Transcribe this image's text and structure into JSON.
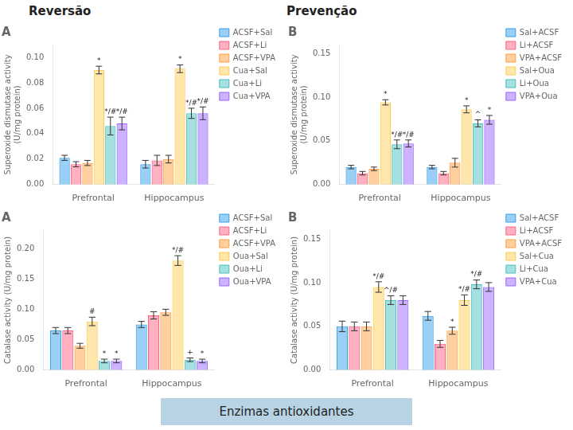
{
  "annotations": [
    "Reversão",
    "Prevenção",
    "Enzimas antioxidantes"
  ],
  "chart_data": [
    {
      "type": "bar",
      "title": "A",
      "ylabel": "Superoxide dismutase activity\n(U/mg protein)",
      "categories": [
        "Prefrontal",
        "Hippocampus"
      ],
      "series": [
        {
          "name": "ACSF+Sal",
          "values": [
            0.021,
            0.016
          ],
          "errors": [
            0.002,
            0.003
          ]
        },
        {
          "name": "ACSF+Li",
          "values": [
            0.016,
            0.019
          ],
          "errors": [
            0.002,
            0.004
          ]
        },
        {
          "name": "ACSF+VPA",
          "values": [
            0.017,
            0.02
          ],
          "errors": [
            0.002,
            0.003
          ]
        },
        {
          "name": "Cua+Sal",
          "values": [
            0.09,
            0.091
          ],
          "errors": [
            0.003,
            0.003
          ],
          "annotations": [
            "*",
            "*"
          ]
        },
        {
          "name": "Cua+Li",
          "values": [
            0.046,
            0.056
          ],
          "errors": [
            0.007,
            0.004
          ],
          "annotations": [
            "*/#",
            "*/#"
          ]
        },
        {
          "name": "Cua+VPA",
          "values": [
            0.048,
            0.056
          ],
          "errors": [
            0.005,
            0.005
          ],
          "annotations": [
            "*/#",
            "*/#"
          ]
        }
      ],
      "ylim": [
        0,
        0.11
      ],
      "yticks": [
        {
          "value": 0,
          "label": "0.00"
        },
        0.02,
        0.04,
        0.06,
        0.08,
        {
          "value": 0.1,
          "label": "0.10"
        }
      ],
      "grid": false,
      "legend": "right"
    },
    {
      "type": "bar",
      "title": "B",
      "ylabel": "Superoxide dismutase activity\n(U/mg protein)",
      "categories": [
        "Prefrontal",
        "Hippocampus"
      ],
      "series": [
        {
          "name": "Sal+ACSF",
          "values": [
            0.02,
            0.02
          ],
          "errors": [
            0.002,
            0.002
          ]
        },
        {
          "name": "Li+ACSF",
          "values": [
            0.013,
            0.013
          ],
          "errors": [
            0.002,
            0.002
          ]
        },
        {
          "name": "VPA+ACSF",
          "values": [
            0.018,
            0.025
          ],
          "errors": [
            0.002,
            0.005
          ]
        },
        {
          "name": "Sal+Oua",
          "values": [
            0.094,
            0.086
          ],
          "errors": [
            0.003,
            0.004
          ],
          "annotations": [
            "*",
            "*"
          ]
        },
        {
          "name": "Li+Oua",
          "values": [
            0.046,
            0.07
          ],
          "errors": [
            0.005,
            0.004
          ],
          "annotations": [
            "*/#",
            "^"
          ]
        },
        {
          "name": "VPA+Oua",
          "values": [
            0.047,
            0.074
          ],
          "errors": [
            0.004,
            0.005
          ],
          "annotations": [
            "*/#",
            "*"
          ]
        }
      ],
      "ylim": [
        0,
        0.16
      ],
      "yticks": [
        {
          "value": 0,
          "label": "0.00"
        },
        0.05,
        {
          "value": 0.1,
          "label": "0.10"
        },
        0.15
      ],
      "grid": false,
      "legend": "right"
    },
    {
      "type": "bar",
      "title": "A",
      "ylabel": "Catalase activity (U/mg protein)",
      "categories": [
        "Prefrontal",
        "Hippocampus"
      ],
      "series": [
        {
          "name": "ACSF+Sal",
          "values": [
            0.065,
            0.075
          ],
          "errors": [
            0.005,
            0.005
          ]
        },
        {
          "name": "ACSF+Li",
          "values": [
            0.065,
            0.09
          ],
          "errors": [
            0.005,
            0.006
          ]
        },
        {
          "name": "ACSF+VPA",
          "values": [
            0.04,
            0.095
          ],
          "errors": [
            0.004,
            0.005
          ]
        },
        {
          "name": "Oua+Sal",
          "values": [
            0.08,
            0.18
          ],
          "errors": [
            0.007,
            0.008
          ],
          "annotations": [
            "#",
            "*/#"
          ]
        },
        {
          "name": "Oua+Li",
          "values": [
            0.015,
            0.017
          ],
          "errors": [
            0.003,
            0.003
          ],
          "annotations": [
            "*",
            "+"
          ]
        },
        {
          "name": "Oua+VPA",
          "values": [
            0.015,
            0.015
          ],
          "errors": [
            0.003,
            0.003
          ],
          "annotations": [
            "*",
            "*"
          ]
        }
      ],
      "ylim": [
        0,
        0.23
      ],
      "yticks": [
        {
          "value": 0,
          "label": "0.00"
        },
        0.05,
        {
          "value": 0.1,
          "label": "0.10"
        },
        0.15,
        {
          "value": 0.2,
          "label": "0.20"
        }
      ],
      "grid": false,
      "legend": "right"
    },
    {
      "type": "bar",
      "title": "B",
      "ylabel": "Catalase activity (U/mg protein)",
      "categories": [
        "Prefrontal",
        "Hippocampus"
      ],
      "series": [
        {
          "name": "Sal+ACSF",
          "values": [
            0.05,
            0.062
          ],
          "errors": [
            0.006,
            0.005
          ]
        },
        {
          "name": "Li+ACSF",
          "values": [
            0.05,
            0.03
          ],
          "errors": [
            0.005,
            0.004
          ]
        },
        {
          "name": "VPA+ACSF",
          "values": [
            0.05,
            0.045
          ],
          "errors": [
            0.005,
            0.004
          ],
          "annotations": [
            null,
            "*"
          ]
        },
        {
          "name": "Sal+Cua",
          "values": [
            0.095,
            0.08
          ],
          "errors": [
            0.006,
            0.006
          ],
          "annotations": [
            "*/#",
            "*/#"
          ]
        },
        {
          "name": "Li+Cua",
          "values": [
            0.08,
            0.098
          ],
          "errors": [
            0.005,
            0.005
          ],
          "annotations": [
            "^/#",
            "*/#"
          ]
        },
        {
          "name": "VPA+Cua",
          "values": [
            0.08,
            0.095
          ],
          "errors": [
            0.005,
            0.005
          ]
        }
      ],
      "ylim": [
        0,
        0.16
      ],
      "yticks": [
        {
          "value": 0,
          "label": "0.00"
        },
        0.05,
        {
          "value": 0.1,
          "label": "0.10"
        },
        0.15
      ],
      "grid": false,
      "legend": "right"
    }
  ]
}
